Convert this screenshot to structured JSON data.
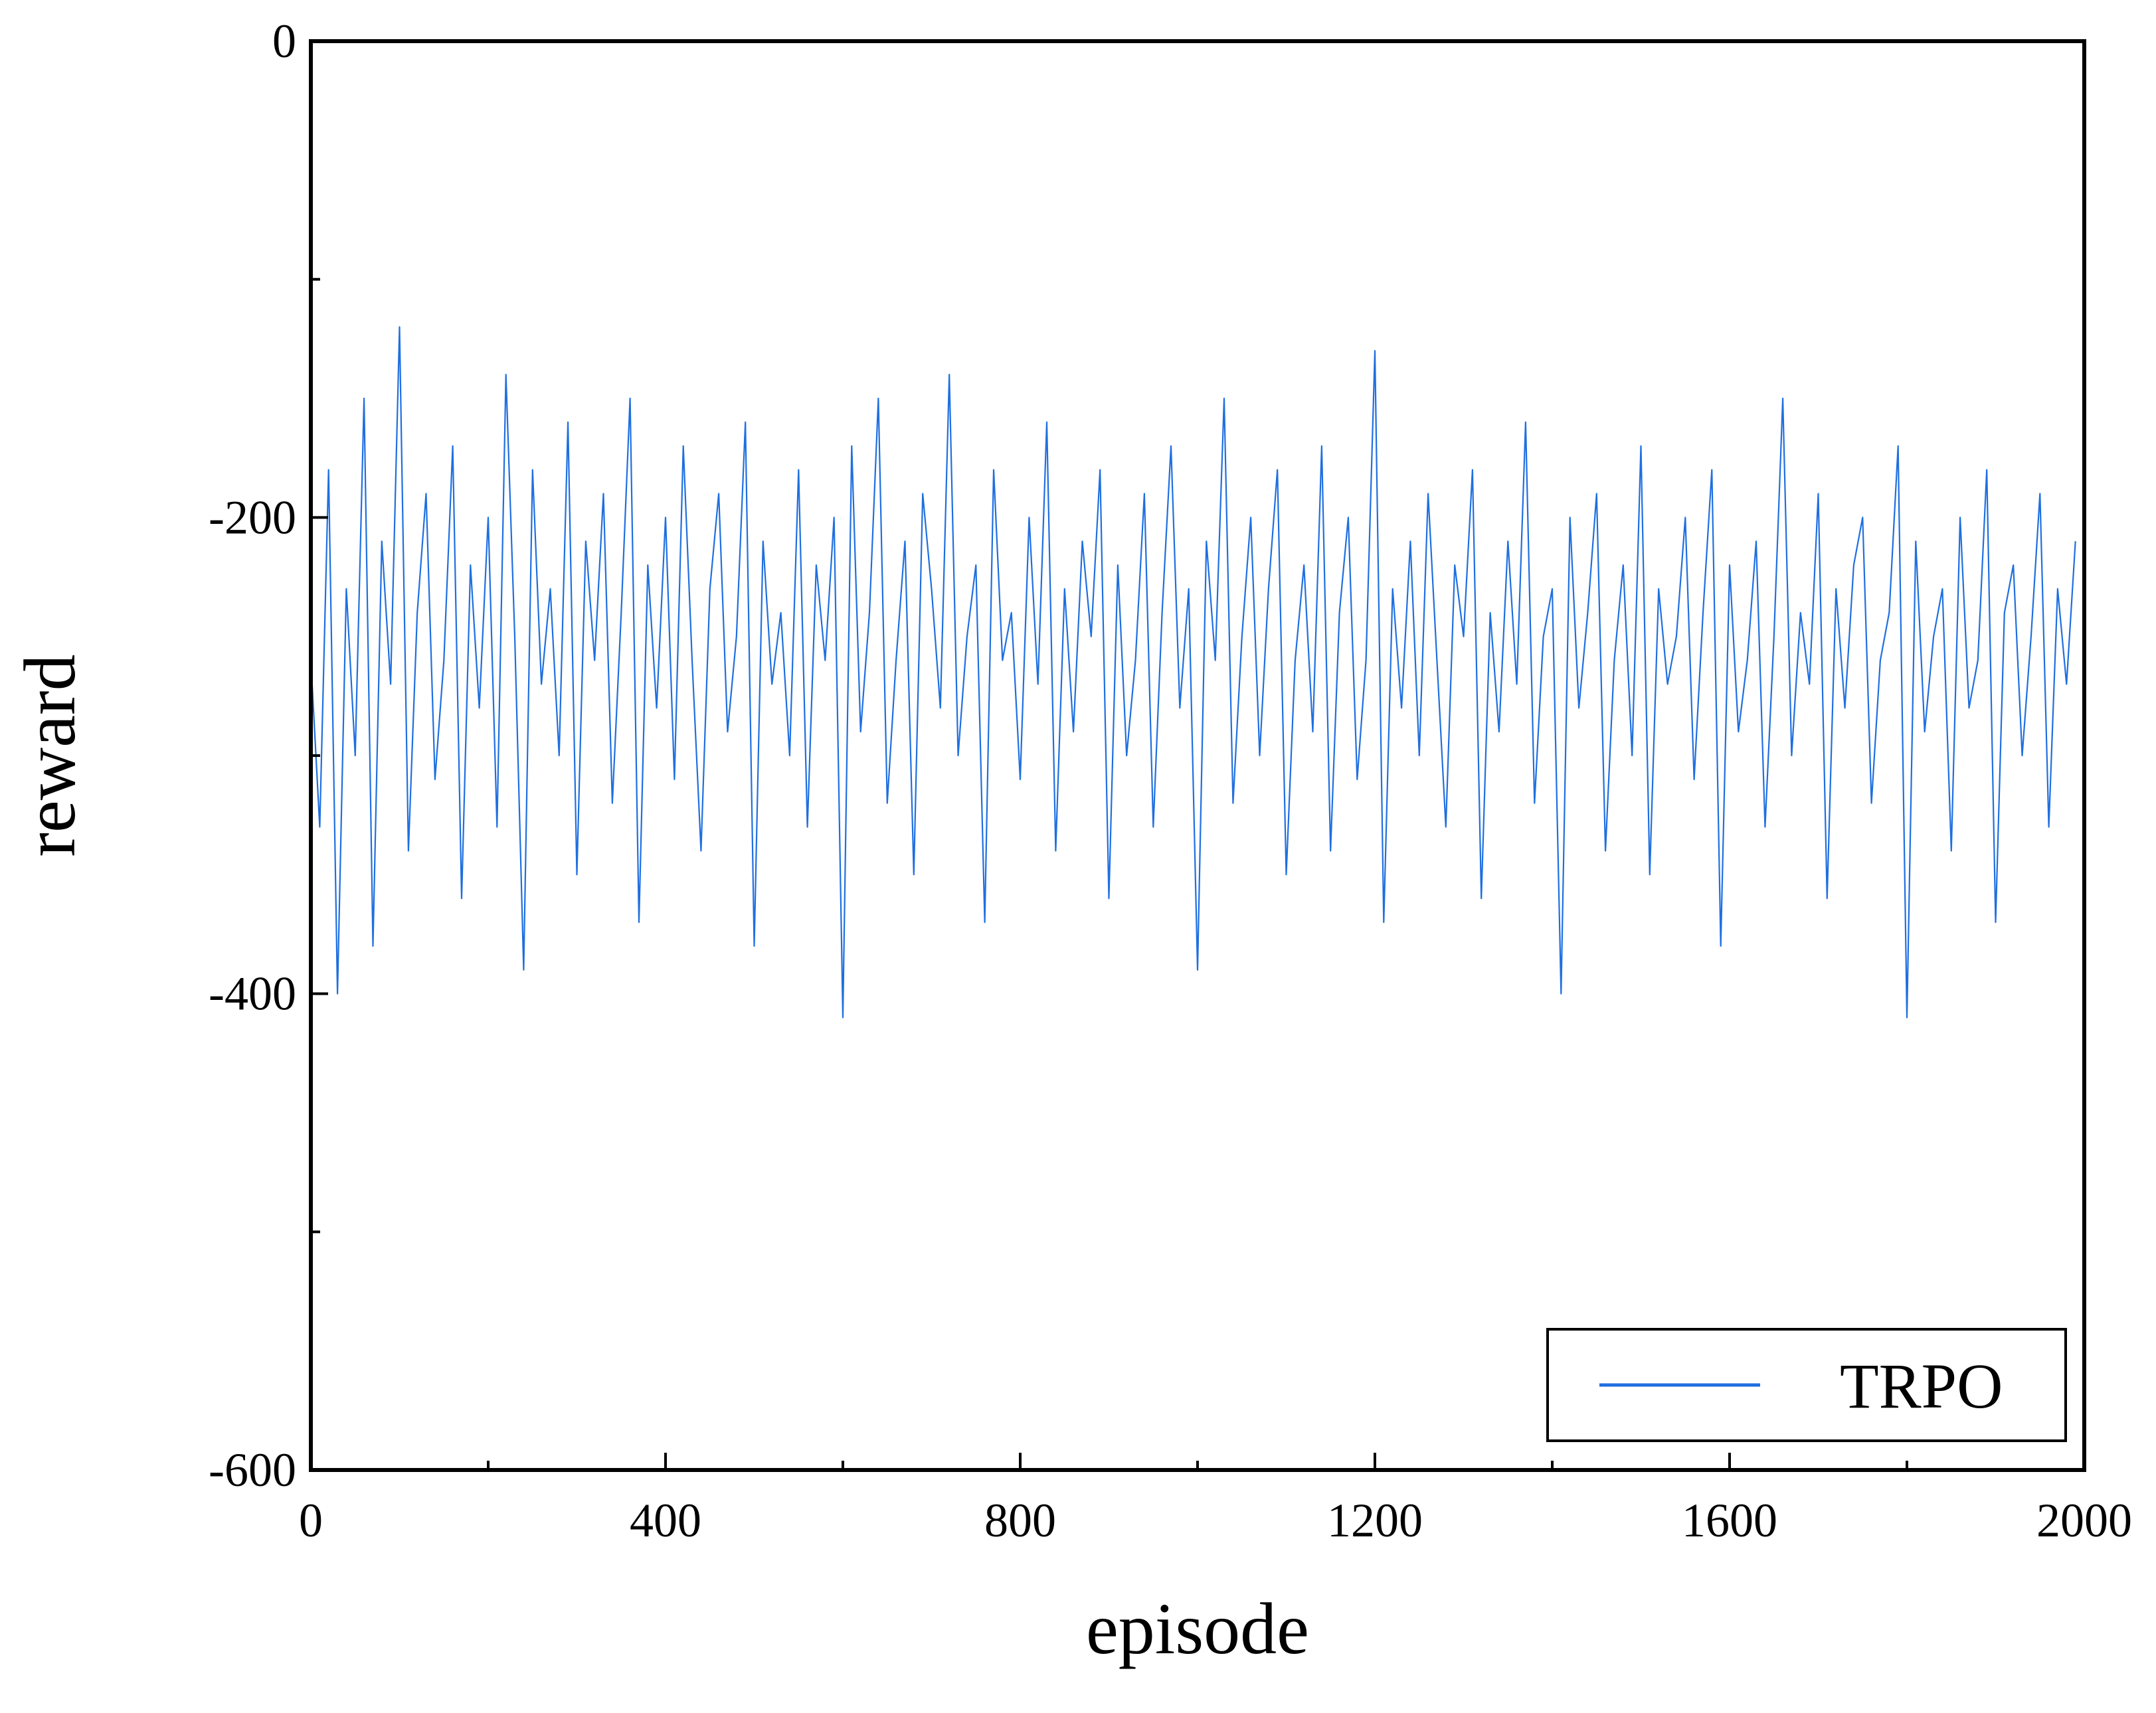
{
  "chart_data": {
    "type": "line",
    "title": "",
    "xlabel": "episode",
    "ylabel": "reward",
    "xlim": [
      0,
      2000
    ],
    "ylim": [
      -600,
      0
    ],
    "xticks": [
      0,
      400,
      800,
      1200,
      1600,
      2000
    ],
    "xtick_labels": [
      "0",
      "400",
      "800",
      "1200",
      "1600",
      "2000"
    ],
    "yticks": [
      0,
      -200,
      -400,
      -600
    ],
    "ytick_labels": [
      "0",
      "-200",
      "-400",
      "-600"
    ],
    "grid": false,
    "legend_position": "bottom-right",
    "series": [
      {
        "name": "TRPO",
        "color": "#1f6fe0",
        "x_start": 0,
        "x_step": 10,
        "values": [
          -260,
          -330,
          -180,
          -400,
          -230,
          -300,
          -150,
          -380,
          -210,
          -270,
          -120,
          -340,
          -240,
          -190,
          -310,
          -260,
          -170,
          -360,
          -220,
          -280,
          -200,
          -330,
          -140,
          -250,
          -390,
          -180,
          -270,
          -230,
          -300,
          -160,
          -350,
          -210,
          -260,
          -190,
          -320,
          -240,
          -150,
          -370,
          -220,
          -280,
          -200,
          -310,
          -170,
          -260,
          -340,
          -230,
          -190,
          -290,
          -250,
          -160,
          -380,
          -210,
          -270,
          -240,
          -300,
          -180,
          -330,
          -220,
          -260,
          -200,
          -410,
          -170,
          -290,
          -240,
          -150,
          -320,
          -260,
          -210,
          -350,
          -190,
          -230,
          -280,
          -140,
          -300,
          -250,
          -220,
          -370,
          -180,
          -260,
          -240,
          -310,
          -200,
          -270,
          -160,
          -340,
          -230,
          -290,
          -210,
          -250,
          -180,
          -360,
          -220,
          -300,
          -260,
          -190,
          -330,
          -240,
          -170,
          -280,
          -230,
          -390,
          -210,
          -260,
          -150,
          -320,
          -250,
          -200,
          -300,
          -230,
          -180,
          -350,
          -260,
          -220,
          -290,
          -170,
          -340,
          -240,
          -200,
          -310,
          -260,
          -130,
          -370,
          -230,
          -280,
          -210,
          -300,
          -190,
          -260,
          -330,
          -220,
          -250,
          -180,
          -360,
          -240,
          -290,
          -210,
          -270,
          -160,
          -320,
          -250,
          -230,
          -400,
          -200,
          -280,
          -240,
          -190,
          -340,
          -260,
          -220,
          -300,
          -170,
          -350,
          -230,
          -270,
          -250,
          -200,
          -310,
          -240,
          -180,
          -380,
          -220,
          -290,
          -260,
          -210,
          -330,
          -250,
          -150,
          -300,
          -240,
          -270,
          -190,
          -360,
          -230,
          -280,
          -220,
          -200,
          -320,
          -260,
          -240,
          -170,
          -410,
          -210,
          -290,
          -250,
          -230,
          -340,
          -200,
          -280,
          -260,
          -180,
          -370,
          -240,
          -220,
          -300,
          -250,
          -190,
          -330,
          -230,
          -270,
          -210
        ]
      }
    ]
  },
  "legend": {
    "entries": [
      "TRPO"
    ]
  }
}
